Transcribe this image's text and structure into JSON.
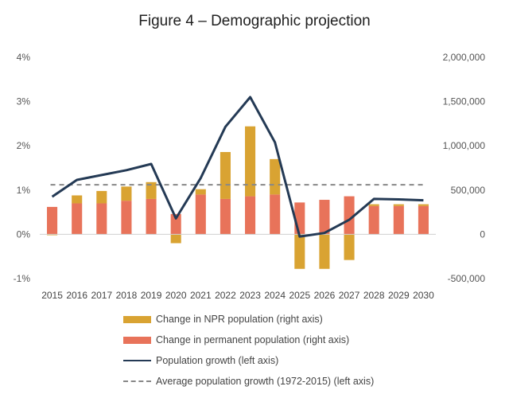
{
  "chart_data": {
    "type": "bar+line",
    "title_main": "Figure 4",
    "title_sub": " – Demographic projection",
    "categories": [
      "2015",
      "2016",
      "2017",
      "2018",
      "2019",
      "2020",
      "2021",
      "2022",
      "2023",
      "2024",
      "2025",
      "2026",
      "2027",
      "2028",
      "2029",
      "2030"
    ],
    "left_axis": {
      "range": [
        -1,
        4
      ],
      "ticks": [
        -1,
        0,
        1,
        2,
        3,
        4
      ],
      "tick_labels": [
        "-1%",
        "0%",
        "1%",
        "2%",
        "3%",
        "4%"
      ]
    },
    "right_axis": {
      "range": [
        -500000,
        2000000
      ],
      "ticks": [
        -500000,
        0,
        500000,
        1000000,
        1500000,
        2000000
      ],
      "tick_labels": [
        "-500,000",
        "0",
        "500,000",
        "1,000,000",
        "1,500,000",
        "2,000,000"
      ]
    },
    "series": [
      {
        "name": "Change in NPR population (right axis)",
        "type": "bar",
        "axis": "right",
        "color": "#d9a332",
        "values": [
          -10000,
          90000,
          140000,
          160000,
          190000,
          -100000,
          60000,
          530000,
          790000,
          400000,
          -390000,
          -390000,
          -290000,
          20000,
          20000,
          20000
        ]
      },
      {
        "name": "Change in permanent population (right axis)",
        "type": "bar",
        "axis": "right",
        "color": "#e8735a",
        "values": [
          310000,
          350000,
          350000,
          380000,
          400000,
          230000,
          450000,
          400000,
          430000,
          450000,
          360000,
          390000,
          430000,
          320000,
          320000,
          320000
        ]
      },
      {
        "name": "Population growth (left axis)",
        "type": "line",
        "axis": "left",
        "color": "#243a55",
        "values": [
          0.85,
          1.23,
          1.34,
          1.45,
          1.59,
          0.36,
          1.27,
          2.43,
          3.1,
          2.08,
          -0.05,
          0.03,
          0.33,
          0.8,
          0.79,
          0.77
        ]
      },
      {
        "name": "Average population growth (1972-2015) (left axis)",
        "type": "dashed-line",
        "axis": "left",
        "color": "#888888",
        "value": 1.12
      }
    ],
    "legend_position": "bottom",
    "grid": false
  }
}
